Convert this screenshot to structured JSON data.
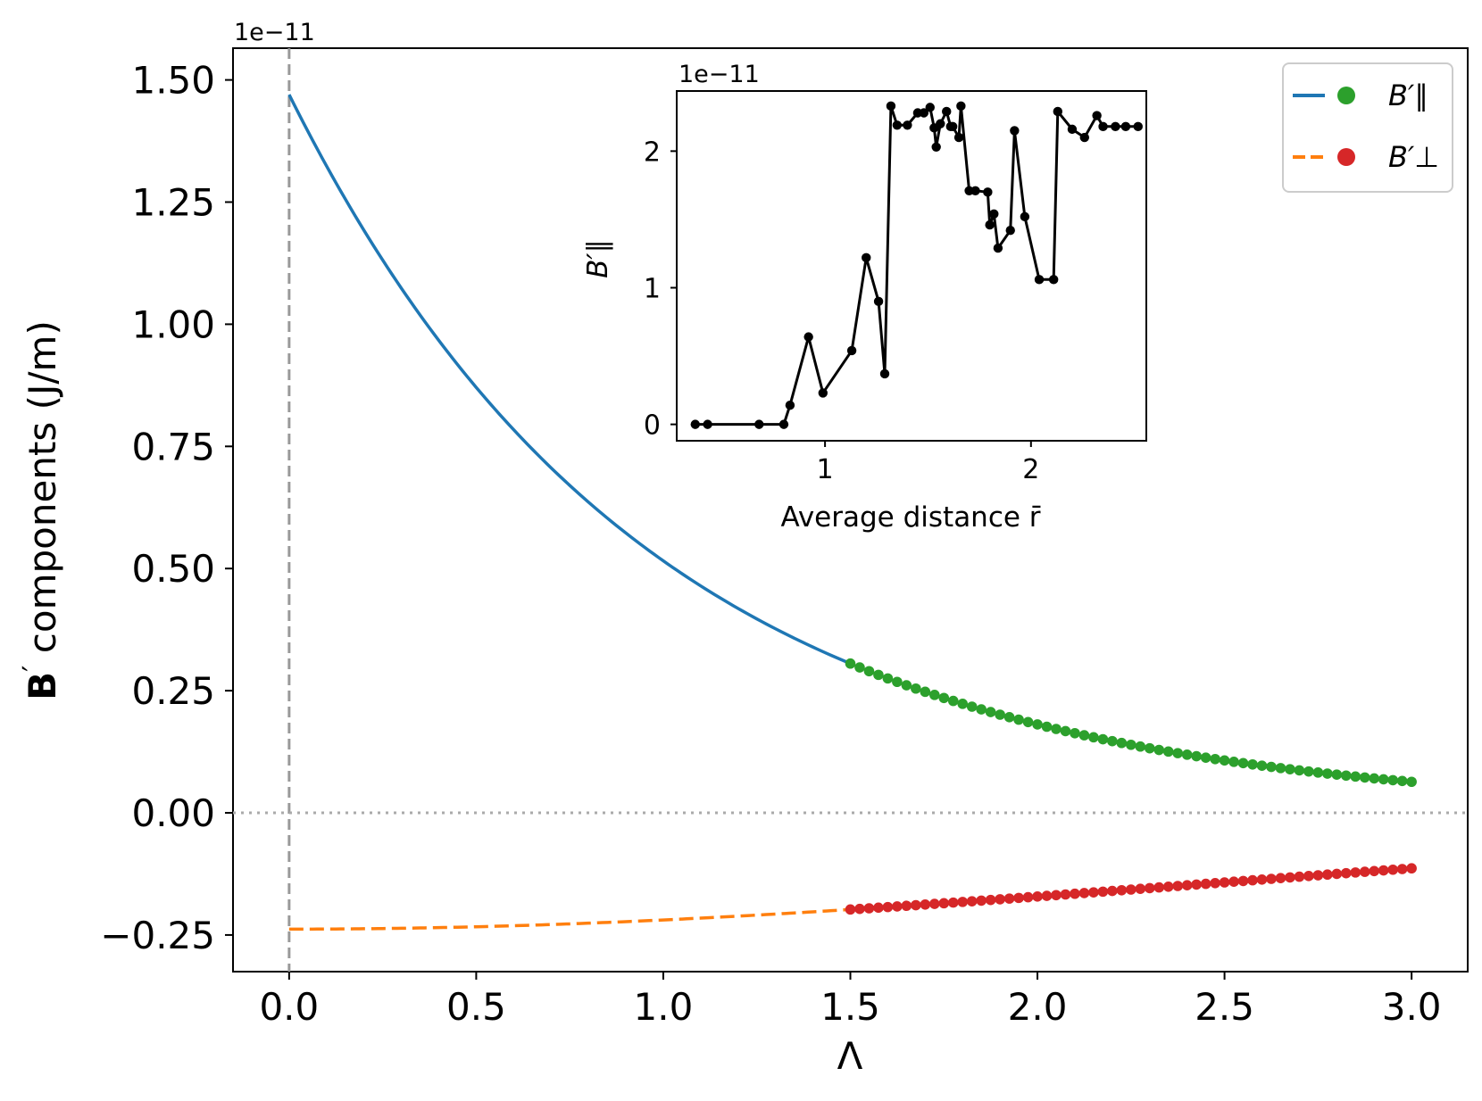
{
  "chart_data": [
    {
      "type": "line",
      "id": "main",
      "title": "",
      "xlabel": "Λ",
      "ylabel": "components (J/m)",
      "ylabel_symbol": "B",
      "ylabel_prime": "′",
      "offset_label": "1e−11",
      "xlim": [
        -0.15,
        3.15
      ],
      "ylim": [
        -0.325,
        1.565
      ],
      "xticks": [
        0.0,
        0.5,
        1.0,
        1.5,
        2.0,
        2.5,
        3.0
      ],
      "xtick_labels": [
        "0.0",
        "0.5",
        "1.0",
        "1.5",
        "2.0",
        "2.5",
        "3.0"
      ],
      "yticks": [
        -0.25,
        0.0,
        0.25,
        0.5,
        0.75,
        1.0,
        1.25,
        1.5
      ],
      "ytick_labels": [
        "−0.25",
        "0.00",
        "0.25",
        "0.50",
        "0.75",
        "1.00",
        "1.25",
        "1.50"
      ],
      "reference_lines": {
        "vertical_x": 0.0,
        "horizontal_y": 0.0
      },
      "legend": {
        "placement": "top-right",
        "entries": [
          "B′∥",
          "B′⊥"
        ]
      },
      "series": [
        {
          "name": "B′∥",
          "component": "parallel",
          "line_color": "#1f77b4",
          "marker_color": "#2ca02c",
          "line_style": "solid",
          "model": "exponential",
          "a": 1.47,
          "k": 1.0474,
          "line_x_range": [
            0.0,
            1.5
          ],
          "marker_x_range": [
            1.5,
            3.0
          ],
          "marker_count": 61
        },
        {
          "name": "B′⊥",
          "component": "perpendicular",
          "line_color": "#ff7f0e",
          "marker_color": "#d62728",
          "line_style": "dashed",
          "model": "bell",
          "a": -0.238,
          "b": 0.0822,
          "line_x_range": [
            0.0,
            1.5
          ],
          "marker_x_range": [
            1.5,
            3.0
          ],
          "marker_count": 61
        }
      ]
    },
    {
      "type": "line",
      "id": "inset",
      "title": "",
      "xlabel": "Average distance r̄",
      "ylabel": "B′∥",
      "offset_label": "1e−11",
      "xlim": [
        0.28,
        2.56
      ],
      "ylim": [
        -0.12,
        2.44
      ],
      "xticks": [
        1,
        2
      ],
      "xtick_labels": [
        "1",
        "2"
      ],
      "yticks": [
        0,
        1,
        2
      ],
      "ytick_labels": [
        "0",
        "1",
        "2"
      ],
      "color": "#000000",
      "x": [
        0.37,
        0.43,
        0.68,
        0.8,
        0.83,
        0.92,
        0.99,
        1.13,
        1.2,
        1.26,
        1.29,
        1.32,
        1.35,
        1.4,
        1.45,
        1.48,
        1.51,
        1.53,
        1.54,
        1.56,
        1.59,
        1.61,
        1.62,
        1.65,
        1.66,
        1.7,
        1.73,
        1.79,
        1.8,
        1.82,
        1.84,
        1.9,
        1.92,
        1.97,
        2.04,
        2.11,
        2.13,
        2.2,
        2.26,
        2.32,
        2.35,
        2.41,
        2.46,
        2.52
      ],
      "y": [
        0.0,
        0.0,
        0.0,
        0.0,
        0.14,
        0.64,
        0.23,
        0.54,
        1.22,
        0.9,
        0.37,
        2.33,
        2.19,
        2.19,
        2.28,
        2.28,
        2.32,
        2.17,
        2.03,
        2.2,
        2.29,
        2.18,
        2.18,
        2.1,
        2.33,
        1.71,
        1.71,
        1.7,
        1.46,
        1.54,
        1.29,
        1.42,
        2.15,
        1.52,
        1.06,
        1.06,
        2.29,
        2.16,
        2.1,
        2.26,
        2.18,
        2.18,
        2.18,
        2.18
      ]
    }
  ]
}
